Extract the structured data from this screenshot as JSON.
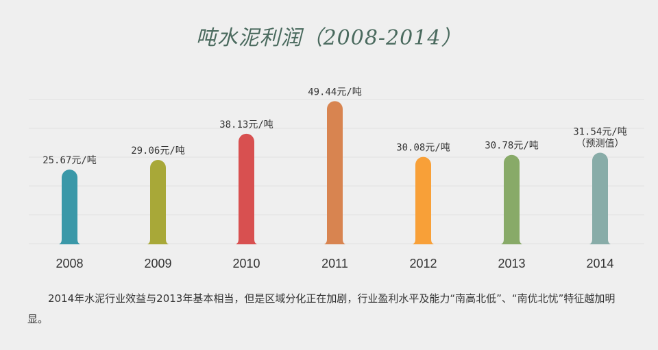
{
  "title": "吨水泥利润（2008-2014）",
  "chart_data": {
    "type": "bar",
    "title": "吨水泥利润（2008-2014）",
    "categories": [
      "2008",
      "2009",
      "2010",
      "2011",
      "2012",
      "2013",
      "2014"
    ],
    "values": [
      25.67,
      29.06,
      38.13,
      49.44,
      30.08,
      30.78,
      31.54
    ],
    "value_labels": [
      "25.67元/吨",
      "29.06元/吨",
      "38.13元/吨",
      "49.44元/吨",
      "30.08元/吨",
      "30.78元/吨",
      "31.54元/吨"
    ],
    "value_notes": [
      "",
      "",
      "",
      "",
      "",
      "",
      "（预测值）"
    ],
    "colors": [
      "#3a98a8",
      "#a8a838",
      "#d85050",
      "#d88450",
      "#f8a038",
      "#88aa68",
      "#88aca8"
    ],
    "ylim": [
      0,
      50
    ],
    "grid": true,
    "legend": "none"
  },
  "caption": "2014年水泥行业效益与2013年基本相当，但是区域分化正在加剧，行业盈利水平及能力“南高北低”、“南优北忧”特征越加明显。"
}
